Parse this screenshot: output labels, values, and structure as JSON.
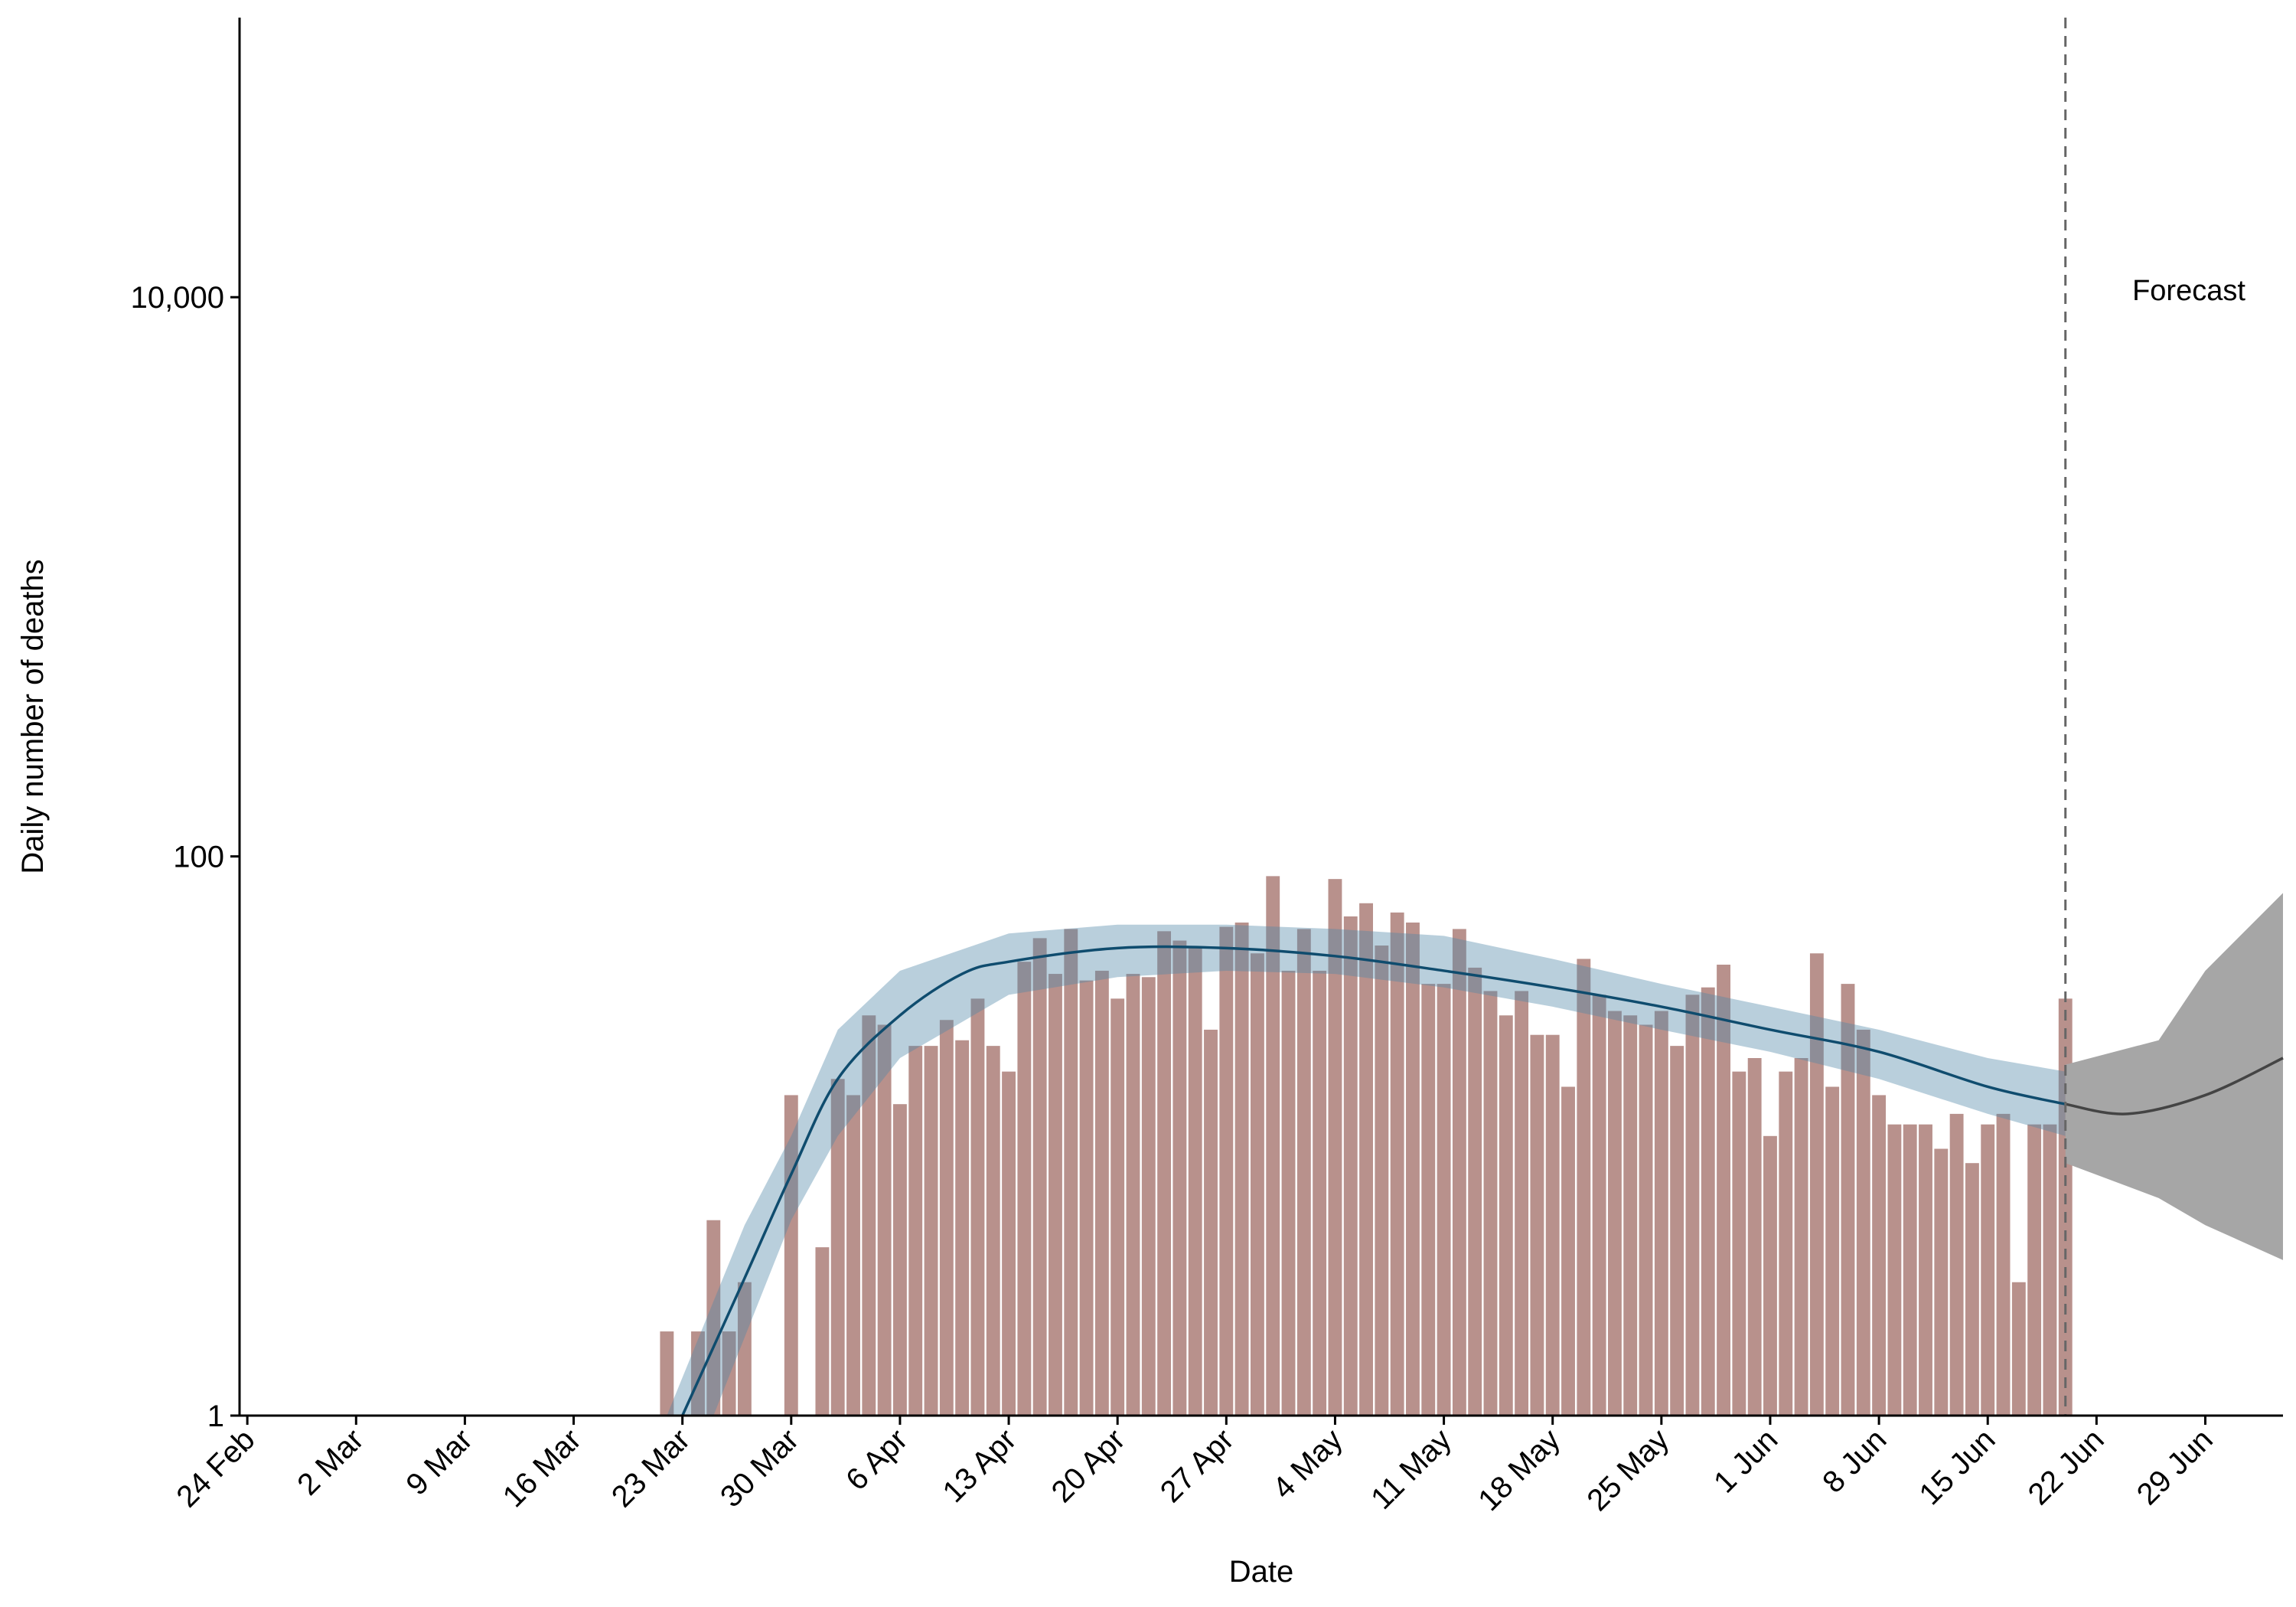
{
  "chart_data": {
    "type": "bar",
    "xlabel": "Date",
    "ylabel": "Daily number of deaths",
    "log_scale": true,
    "ylim": [
      1,
      100000
    ],
    "yticks": [
      1,
      100,
      {
        "value": 10000,
        "label": "10,000"
      }
    ],
    "xlim": [
      "24 Feb",
      "4 Jul"
    ],
    "xticks": [
      "24 Feb",
      "2 Mar",
      "9 Mar",
      "16 Mar",
      "23 Mar",
      "30 Mar",
      "6 Apr",
      "13 Apr",
      "20 Apr",
      "27 Apr",
      "4 May",
      "11 May",
      "18 May",
      "25 May",
      "1 Jun",
      "8 Jun",
      "15 Jun",
      "22 Jun",
      "29 Jun"
    ],
    "bar_color": "#b8918c",
    "x": [
      "22 Mar",
      "23 Mar",
      "24 Mar",
      "25 Mar",
      "26 Mar",
      "27 Mar",
      "28 Mar",
      "29 Mar",
      "30 Mar",
      "31 Mar",
      "1 Apr",
      "2 Apr",
      "3 Apr",
      "4 Apr",
      "5 Apr",
      "6 Apr",
      "7 Apr",
      "8 Apr",
      "9 Apr",
      "10 Apr",
      "11 Apr",
      "12 Apr",
      "13 Apr",
      "14 Apr",
      "15 Apr",
      "16 Apr",
      "17 Apr",
      "18 Apr",
      "19 Apr",
      "20 Apr",
      "21 Apr",
      "22 Apr",
      "23 Apr",
      "24 Apr",
      "25 Apr",
      "26 Apr",
      "27 Apr",
      "28 Apr",
      "29 Apr",
      "30 Apr",
      "1 May",
      "2 May",
      "3 May",
      "4 May",
      "5 May",
      "6 May",
      "7 May",
      "8 May",
      "9 May",
      "10 May",
      "11 May",
      "12 May",
      "13 May",
      "14 May",
      "15 May",
      "16 May",
      "17 May",
      "18 May",
      "19 May",
      "20 May",
      "21 May",
      "22 May",
      "23 May",
      "24 May",
      "25 May",
      "26 May",
      "27 May",
      "28 May",
      "29 May",
      "30 May",
      "31 May",
      "1 Jun",
      "2 Jun",
      "3 Jun",
      "4 Jun",
      "5 Jun",
      "6 Jun",
      "7 Jun",
      "8 Jun",
      "9 Jun",
      "10 Jun",
      "11 Jun",
      "12 Jun",
      "13 Jun",
      "14 Jun",
      "15 Jun",
      "16 Jun",
      "17 Jun",
      "18 Jun",
      "19 Jun",
      "20 Jun"
    ],
    "values": [
      2,
      1,
      2,
      5,
      2,
      3,
      1,
      1,
      14,
      1,
      4,
      16,
      14,
      27,
      25,
      13,
      21,
      21,
      26,
      22,
      31,
      21,
      17,
      42,
      51,
      38,
      55,
      36,
      39,
      31,
      38,
      37,
      54,
      50,
      47,
      24,
      56,
      58,
      45,
      85,
      39,
      55,
      39,
      83,
      61,
      68,
      48,
      63,
      58,
      35,
      35,
      55,
      40,
      33,
      27,
      33,
      23,
      23,
      15,
      43,
      32,
      28,
      27,
      25,
      28,
      21,
      32,
      34,
      41,
      17,
      19,
      10,
      17,
      19,
      45,
      15,
      35,
      24,
      14,
      11,
      11,
      11,
      9,
      12,
      8,
      11,
      12,
      3,
      11,
      11,
      31
    ],
    "fit": {
      "color": "#0f4c6e",
      "band_color": "#4f87a8",
      "x": [
        "22 Mar",
        "23 Mar",
        "25 Mar",
        "27 Mar",
        "30 Mar",
        "2 Apr",
        "6 Apr",
        "10 Apr",
        "13 Apr",
        "20 Apr",
        "27 Apr",
        "4 May",
        "11 May",
        "18 May",
        "25 May",
        "1 Jun",
        "8 Jun",
        "15 Jun",
        "20 Jun"
      ],
      "values": [
        null,
        1,
        null,
        3.1,
        7.3,
        16,
        27,
        38,
        42,
        47,
        47,
        44,
        39,
        34,
        29,
        24,
        20,
        15,
        13
      ],
      "lower": [
        null,
        null,
        1,
        null,
        5,
        10,
        19,
        null,
        32,
        37,
        39,
        38,
        34,
        29,
        24,
        20,
        16,
        12,
        10
      ],
      "upper": [
        1,
        null,
        null,
        4.8,
        10,
        24,
        39,
        null,
        53,
        57,
        57,
        55,
        52,
        43,
        35,
        29,
        24,
        19,
        17
      ]
    },
    "forecast": {
      "label": "Forecast",
      "start": "20 Jun",
      "color": "#444444",
      "band_color": "#a6a6a6",
      "x": [
        "20 Jun",
        "24 Jun",
        "26 Jun",
        "29 Jun",
        "4 Jul"
      ],
      "values": [
        13,
        12,
        null,
        14,
        19
      ],
      "lower": [
        8,
        null,
        6,
        4.8,
        3.6
      ],
      "upper": [
        18,
        null,
        22,
        39,
        74
      ]
    }
  }
}
